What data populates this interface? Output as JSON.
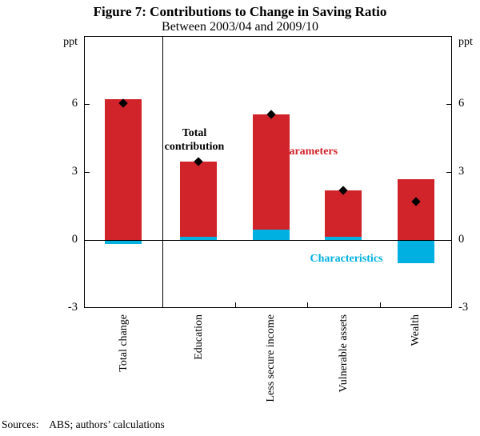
{
  "chart_data": {
    "type": "bar",
    "title": "Figure 7: Contributions to Change in Saving Ratio",
    "subtitle": "Between 2003/04 and 2009/10",
    "ylabel": "ppt",
    "ylim": [
      -3,
      9
    ],
    "yticks": [
      6,
      3,
      0,
      -3
    ],
    "grid": false,
    "legend_position": "none",
    "categories": [
      "Total change",
      "Education",
      "Less secure income",
      "Vulnerable assets",
      "Wealth"
    ],
    "series": [
      {
        "name": "Parameters",
        "role": "bar",
        "color": "#d0232a",
        "values": [
          6.2,
          3.3,
          5.1,
          2.05,
          2.7
        ]
      },
      {
        "name": "Characteristics",
        "role": "bar",
        "color": "#00b0e0",
        "values": [
          -0.15,
          0.15,
          0.45,
          0.15,
          -1.0
        ]
      },
      {
        "name": "Total contribution",
        "role": "marker",
        "color": "#000000",
        "values": [
          6.05,
          3.45,
          5.55,
          2.2,
          1.7
        ]
      }
    ],
    "annotations": [
      {
        "text": "Total contribution",
        "color": "#000000"
      },
      {
        "text": "Parameters",
        "color": "#d0232a"
      },
      {
        "text": "Characteristics",
        "color": "#00b0e0"
      }
    ]
  },
  "source_note": "Sources:    ABS; authors’ calculations"
}
